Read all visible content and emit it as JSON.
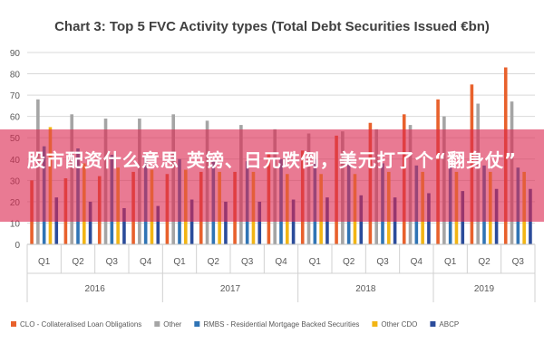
{
  "colors": {
    "clo": "#e8612c",
    "other": "#a5a5a5",
    "rmbs": "#2f74b5",
    "other_cdo": "#f2b514",
    "abcp": "#2b4c9b",
    "grid": "#d9d9d9",
    "text": "#595959",
    "banner": "#dc2850"
  },
  "banner": {
    "text": "股市配资什么意思 英镑、日元跌倒，美元打了个“翻身仗”"
  },
  "chart_data": {
    "type": "bar",
    "title": "Chart 3: Top 5 FVC Activity types (Total Debt Securities Issued €bn)",
    "xlabel": "",
    "ylabel": "",
    "ylim": [
      0,
      90
    ],
    "yticks": [
      0,
      10,
      20,
      30,
      40,
      50,
      60,
      70,
      80,
      90
    ],
    "grid": true,
    "legend_position": "bottom",
    "categories": [
      "Q1",
      "Q2",
      "Q3",
      "Q4",
      "Q1",
      "Q2",
      "Q3",
      "Q4",
      "Q1",
      "Q2",
      "Q3",
      "Q4",
      "Q1",
      "Q2",
      "Q3"
    ],
    "groups": [
      {
        "label": "2016",
        "count": 4
      },
      {
        "label": "2017",
        "count": 4
      },
      {
        "label": "2018",
        "count": 4
      },
      {
        "label": "2019",
        "count": 3
      }
    ],
    "series": [
      {
        "name": "CLO - Collateralised Loan Obligations",
        "color_key": "clo",
        "values": [
          30,
          31,
          32,
          34,
          33,
          34,
          34,
          43,
          44,
          51,
          57,
          61,
          68,
          75,
          83
        ]
      },
      {
        "name": "Other",
        "color_key": "other",
        "values": [
          68,
          61,
          59,
          59,
          61,
          58,
          56,
          54,
          52,
          53,
          54,
          56,
          60,
          66,
          67
        ]
      },
      {
        "name": "RMBS - Residential Mortgage Backed Securities",
        "color_key": "rmbs",
        "values": [
          46,
          45,
          42,
          41,
          40,
          39,
          39,
          40,
          40,
          39,
          38,
          37,
          37,
          37,
          36
        ]
      },
      {
        "name": "Other CDO",
        "color_key": "other_cdo",
        "values": [
          55,
          38,
          36,
          35,
          35,
          34,
          34,
          33,
          33,
          33,
          34,
          34,
          34,
          34,
          34
        ]
      },
      {
        "name": "ABCP",
        "color_key": "abcp",
        "values": [
          22,
          20,
          17,
          18,
          21,
          20,
          20,
          21,
          22,
          23,
          22,
          24,
          25,
          26,
          26
        ]
      }
    ]
  }
}
